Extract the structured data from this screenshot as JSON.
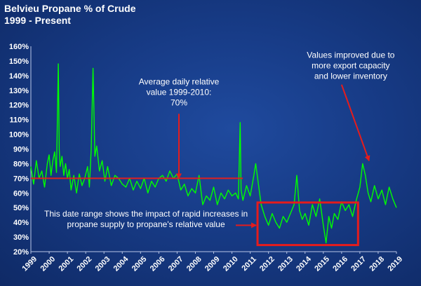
{
  "title_lines": [
    "Belvieu Propane % of Crude",
    "1999 - Present"
  ],
  "chart_data": {
    "type": "line",
    "title": "Belvieu Propane % of Crude 1999 - Present",
    "xlabel": "",
    "ylabel": "",
    "xlim": [
      1999.0,
      2019.0
    ],
    "ylim": [
      20,
      160
    ],
    "y_ticks": [
      "20%",
      "30%",
      "40%",
      "50%",
      "60%",
      "70%",
      "80%",
      "90%",
      "100%",
      "110%",
      "120%",
      "130%",
      "140%",
      "150%",
      "160%"
    ],
    "x_ticks": [
      "1999",
      "2000",
      "2001",
      "2002",
      "2003",
      "2004",
      "2005",
      "2006",
      "2007",
      "2008",
      "2009",
      "2010",
      "2011",
      "2012",
      "2013",
      "2014",
      "2015",
      "2016",
      "2017",
      "2018",
      "2019"
    ],
    "grid": false,
    "series": [
      {
        "color": "#00ff00",
        "x": [
          1999.0,
          1999.15,
          1999.3,
          1999.45,
          1999.6,
          1999.75,
          1999.9,
          2000.0,
          2000.1,
          2000.2,
          2000.3,
          2000.4,
          2000.5,
          2000.55,
          2000.6,
          2000.7,
          2000.8,
          2000.9,
          2001.0,
          2001.1,
          2001.2,
          2001.35,
          2001.5,
          2001.65,
          2001.8,
          2001.95,
          2002.1,
          2002.2,
          2002.3,
          2002.4,
          2002.5,
          2002.6,
          2002.75,
          2002.9,
          2003.05,
          2003.2,
          2003.4,
          2003.6,
          2003.8,
          2004.0,
          2004.2,
          2004.4,
          2004.6,
          2004.8,
          2005.0,
          2005.2,
          2005.4,
          2005.6,
          2005.8,
          2006.0,
          2006.2,
          2006.4,
          2006.6,
          2006.8,
          2007.0,
          2007.2,
          2007.4,
          2007.6,
          2007.8,
          2008.0,
          2008.2,
          2008.4,
          2008.6,
          2008.8,
          2009.0,
          2009.2,
          2009.4,
          2009.6,
          2009.8,
          2010.0,
          2010.2,
          2010.35,
          2010.45,
          2010.5,
          2010.6,
          2010.8,
          2011.0,
          2011.2,
          2011.3,
          2011.45,
          2011.6,
          2011.8,
          2012.0,
          2012.2,
          2012.4,
          2012.6,
          2012.8,
          2013.0,
          2013.2,
          2013.4,
          2013.55,
          2013.7,
          2013.85,
          2014.0,
          2014.2,
          2014.4,
          2014.6,
          2014.8,
          2015.0,
          2015.15,
          2015.3,
          2015.45,
          2015.6,
          2015.8,
          2016.0,
          2016.2,
          2016.4,
          2016.6,
          2016.8,
          2017.0,
          2017.15,
          2017.3,
          2017.45,
          2017.6,
          2017.8,
          2018.0,
          2018.2,
          2018.4,
          2018.6,
          2018.8,
          2019.0
        ],
        "y": [
          78,
          66,
          82,
          70,
          75,
          64,
          80,
          86,
          72,
          82,
          88,
          74,
          148,
          90,
          78,
          85,
          72,
          80,
          70,
          76,
          62,
          72,
          60,
          73,
          65,
          70,
          78,
          64,
          90,
          145,
          85,
          92,
          75,
          82,
          68,
          78,
          65,
          72,
          70,
          66,
          64,
          70,
          62,
          68,
          63,
          70,
          60,
          68,
          64,
          70,
          72,
          68,
          75,
          70,
          73,
          62,
          66,
          58,
          63,
          60,
          72,
          52,
          58,
          55,
          64,
          52,
          60,
          56,
          62,
          58,
          60,
          56,
          108,
          62,
          55,
          65,
          58,
          72,
          80,
          66,
          52,
          44,
          38,
          46,
          40,
          36,
          44,
          40,
          46,
          52,
          72,
          48,
          42,
          46,
          38,
          52,
          44,
          56,
          38,
          26,
          44,
          36,
          46,
          42,
          54,
          48,
          52,
          44,
          55,
          64,
          80,
          72,
          60,
          54,
          65,
          56,
          62,
          52,
          64,
          56,
          50
        ]
      }
    ],
    "reference_line": {
      "y": 70,
      "color": "#e02020"
    },
    "highlight_box": {
      "x_range": [
        2011.4,
        2016.9
      ],
      "y_range": [
        24.5,
        53.5
      ],
      "color": "#e51c1c"
    },
    "annotations": [
      {
        "text_lines": [
          "Average daily relative",
          "value 1999-2010:",
          "70%"
        ],
        "text_anchor": [
          2007.1,
          134
        ],
        "arrow_to": [
          2007.1,
          70
        ]
      },
      {
        "text_lines": [
          "Values improved due to",
          "more export capacity",
          "and lower inventory"
        ],
        "text_anchor": [
          2016.5,
          152
        ],
        "arrow_to": [
          2017.5,
          82
        ]
      },
      {
        "text_lines": [
          "This date range shows the impact of rapid increases in",
          "propane supply to propane's relative value"
        ],
        "text_anchor": [
          2005.3,
          44
        ],
        "arrow_to": [
          2011.4,
          38
        ]
      }
    ]
  }
}
